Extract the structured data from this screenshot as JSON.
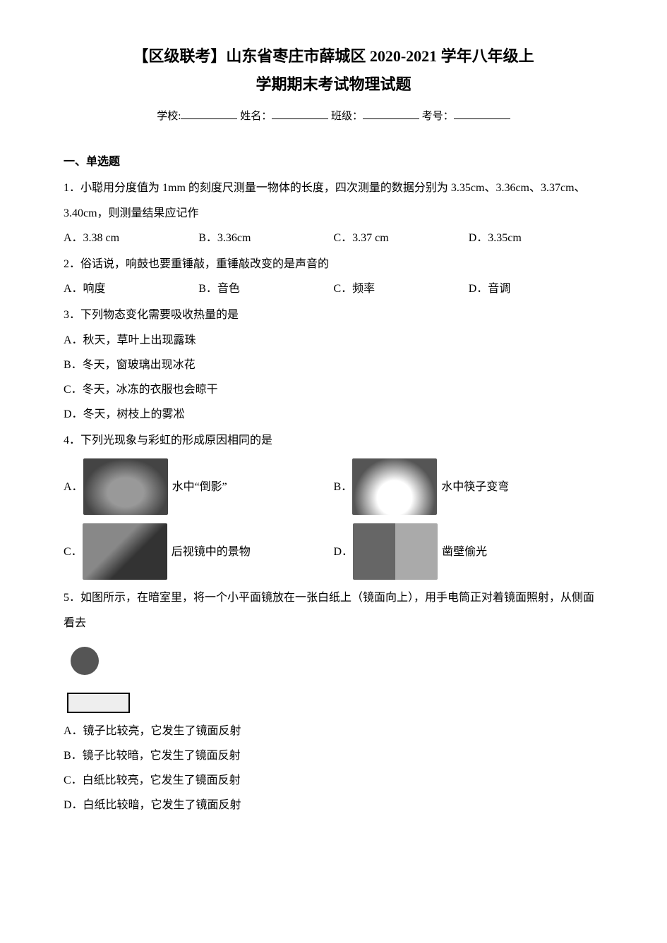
{
  "title_line1": "【区级联考】山东省枣庄市薛城区 2020-2021 学年八年级上",
  "title_line2": "学期期末考试物理试题",
  "meta": {
    "school": "学校:",
    "name": "姓名：",
    "class": "班级：",
    "number": "考号："
  },
  "section1": "一、单选题",
  "q1": {
    "stem": "1．小聪用分度值为 1mm 的刻度尺测量一物体的长度，四次测量的数据分别为 3.35cm、3.36cm、3.37cm、3.40cm，则测量结果应记作",
    "A": "A．3.38 cm",
    "B": "B．3.36cm",
    "C": "C．3.37 cm",
    "D": "D．3.35cm"
  },
  "q2": {
    "stem": "2．俗话说，响鼓也要重锤敲，重锤敲改变的是声音的",
    "A": "A．响度",
    "B": "B．音色",
    "C": "C．频率",
    "D": "D．音调"
  },
  "q3": {
    "stem": "3．下列物态变化需要吸收热量的是",
    "A": "A．秋天，草叶上出现露珠",
    "B": "B．冬天，窗玻璃出现冰花",
    "C": "C．冬天，冰冻的衣服也会晾干",
    "D": "D．冬天，树枝上的雾凇"
  },
  "q4": {
    "stem": "4．下列光现象与彩虹的形成原因相同的是",
    "A_prefix": "A．",
    "A_text": "水中“倒影”",
    "B_prefix": "B．",
    "B_text": "水中筷子变弯",
    "C_prefix": "C．",
    "C_text": "后视镜中的景物",
    "D_prefix": "D．",
    "D_text": "凿壁偷光"
  },
  "q5": {
    "stem": "5．如图所示，在暗室里，将一个小平面镜放在一张白纸上（镜面向上），用手电筒正对着镜面照射，从侧面看去",
    "A": "A．镜子比较亮，它发生了镜面反射",
    "B": "B．镜子比较暗，它发生了镜面反射",
    "C": "C．白纸比较亮，它发生了镜面反射",
    "D": "D．白纸比较暗，它发生了镜面反射"
  }
}
